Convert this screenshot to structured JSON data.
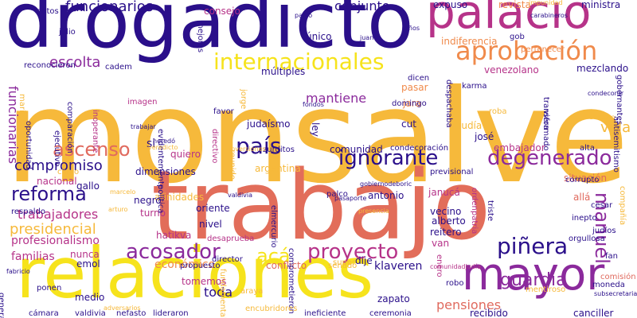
{
  "palette": {
    "indigo": "#2a0f8a",
    "purple": "#8b2a9c",
    "magenta": "#b63389",
    "coral": "#e06a5e",
    "salmon": "#e26d5a",
    "orange": "#f08a4b",
    "amber": "#f6b93b",
    "yellow": "#f6e31c",
    "pale": "#f3d27a"
  },
  "words": [
    {
      "text": "monsalve",
      "color": "#f6b93b"
    },
    {
      "text": "trabajo",
      "color": "#e26d5a"
    },
    {
      "text": "drogadicto",
      "color": "#2a0f8a"
    },
    {
      "text": "relaciones",
      "color": "#f6e31c"
    },
    {
      "text": "mayor",
      "color": "#8b2a9c"
    },
    {
      "text": "palacio",
      "color": "#b63389"
    },
    {
      "text": "aprobación",
      "color": "#f08a4b"
    },
    {
      "text": "internacionales",
      "color": "#f6e31c"
    },
    {
      "text": "país",
      "color": "#2a0f8a"
    },
    {
      "text": "ignorante",
      "color": "#2a0f8a"
    },
    {
      "text": "degenerado",
      "color": "#8b2a9c"
    },
    {
      "text": "acosador",
      "color": "#8b2a9c"
    },
    {
      "text": "acá",
      "color": "#f6e31c"
    },
    {
      "text": "proyecto",
      "color": "#b63389"
    },
    {
      "text": "piñera",
      "color": "#2a0f8a"
    },
    {
      "text": "ascenso",
      "color": "#e06a5e"
    },
    {
      "text": "reforma",
      "color": "#2a0f8a"
    },
    {
      "text": "compromiso",
      "color": "#2a0f8a"
    },
    {
      "text": "escolta",
      "color": "#8b2a9c"
    },
    {
      "text": "funcionarios",
      "color": "#2a0f8a"
    },
    {
      "text": "conjunto",
      "color": "#2a0f8a"
    },
    {
      "text": "manuel",
      "color": "#8b2a9c"
    },
    {
      "text": "guardia",
      "color": "#8b2a9c"
    },
    {
      "text": "mantiene",
      "color": "#8b2a9c"
    },
    {
      "text": "vida",
      "color": "#f6b93b"
    },
    {
      "text": "trabajadores",
      "color": "#b63389"
    },
    {
      "text": "presidencial",
      "color": "#f6b93b"
    },
    {
      "text": "profesionalismo",
      "color": "#b63389"
    },
    {
      "text": "funcionarias",
      "color": "#8b2a9c"
    },
    {
      "text": "familias",
      "color": "#b63389"
    },
    {
      "text": "pensiones",
      "color": "#e06a5e"
    },
    {
      "text": "económico",
      "color": "#f08a4b"
    },
    {
      "text": "comunidad",
      "color": "#2a0f8a"
    },
    {
      "text": "venezolano",
      "color": "#b63389"
    },
    {
      "text": "indiferencia",
      "color": "#f08a4b"
    },
    {
      "text": "mezclando",
      "color": "#2a0f8a"
    },
    {
      "text": "embajador",
      "color": "#b63389"
    },
    {
      "text": "situación",
      "color": "#e06a5e"
    },
    {
      "text": "klaveren",
      "color": "#2a0f8a"
    },
    {
      "text": "conflicto",
      "color": "#e06a5e"
    },
    {
      "text": "zapato",
      "color": "#2a0f8a"
    },
    {
      "text": "toda",
      "color": "#2a0f8a"
    },
    {
      "text": "medio",
      "color": "#2a0f8a"
    },
    {
      "text": "expuso",
      "color": "#2a0f8a"
    },
    {
      "text": "revista",
      "color": "#f08a4b"
    },
    {
      "text": "ministra",
      "color": "#2a0f8a"
    },
    {
      "text": "múltiples",
      "color": "#2a0f8a"
    },
    {
      "text": "consejo",
      "color": "#b63389"
    },
    {
      "text": "único",
      "color": "#2a0f8a"
    },
    {
      "text": "argentina",
      "color": "#f6b93b"
    },
    {
      "text": "antonio",
      "color": "#2a0f8a"
    },
    {
      "text": "alberto",
      "color": "#2a0f8a"
    },
    {
      "text": "vecino",
      "color": "#2a0f8a"
    },
    {
      "text": "reitero",
      "color": "#2a0f8a"
    },
    {
      "text": "van",
      "color": "#b63389"
    },
    {
      "text": "dije",
      "color": "#2a0f8a"
    },
    {
      "text": "janucá",
      "color": "#b63389"
    },
    {
      "text": "afinidades",
      "color": "#f6b93b"
    },
    {
      "text": "oriente",
      "color": "#2a0f8a"
    },
    {
      "text": "nivel",
      "color": "#2a0f8a"
    },
    {
      "text": "turno",
      "color": "#b63389"
    },
    {
      "text": "dimensiones",
      "color": "#2a0f8a"
    },
    {
      "text": "quiero",
      "color": "#b63389"
    },
    {
      "text": "si",
      "color": "#2a0f8a"
    },
    {
      "text": "nacional",
      "color": "#b63389"
    },
    {
      "text": "gallo",
      "color": "#2a0f8a"
    },
    {
      "text": "negro",
      "color": "#2a0f8a"
    },
    {
      "text": "hatikva",
      "color": "#b63389"
    },
    {
      "text": "nunca",
      "color": "#b63389"
    },
    {
      "text": "emol",
      "color": "#2a0f8a"
    },
    {
      "text": "tomemos",
      "color": "#b63389"
    },
    {
      "text": "cámara",
      "color": "#2a0f8a"
    },
    {
      "text": "valdivia",
      "color": "#2a0f8a"
    },
    {
      "text": "nefasto",
      "color": "#2a0f8a"
    },
    {
      "text": "lideraron",
      "color": "#2a0f8a"
    },
    {
      "text": "araya",
      "color": "#f6b93b"
    },
    {
      "text": "recibido",
      "color": "#2a0f8a"
    },
    {
      "text": "ceremonia",
      "color": "#2a0f8a"
    },
    {
      "text": "ineficiente",
      "color": "#2a0f8a"
    },
    {
      "text": "canciller",
      "color": "#2a0f8a"
    },
    {
      "text": "moneda",
      "color": "#2a0f8a"
    },
    {
      "text": "comisión",
      "color": "#e06a5e"
    },
    {
      "text": "general",
      "color": "#2a0f8a"
    },
    {
      "text": "ponen",
      "color": "#2a0f8a"
    },
    {
      "text": "propuesto",
      "color": "#2a0f8a"
    },
    {
      "text": "director",
      "color": "#2a0f8a"
    },
    {
      "text": "senado",
      "color": "#f6b93b"
    },
    {
      "text": "super",
      "color": "#f6b93b"
    },
    {
      "text": "pasar",
      "color": "#f08a4b"
    },
    {
      "text": "jara",
      "color": "#f08a4b"
    },
    {
      "text": "cut",
      "color": "#2a0f8a"
    },
    {
      "text": "judía",
      "color": "#f6b93b"
    },
    {
      "text": "judíos",
      "color": "#2a0f8a"
    },
    {
      "text": "ley",
      "color": "#2a0f8a"
    },
    {
      "text": "judaísmo",
      "color": "#2a0f8a"
    },
    {
      "text": "josé",
      "color": "#2a0f8a"
    },
    {
      "text": "condecoración",
      "color": "#2a0f8a"
    },
    {
      "text": "previsional",
      "color": "#2a0f8a"
    },
    {
      "text": "zurditos",
      "color": "#2a0f8a"
    },
    {
      "text": "palco",
      "color": "#2a0f8a"
    },
    {
      "text": "triste",
      "color": "#2a0f8a"
    },
    {
      "text": "inepto",
      "color": "#2a0f8a"
    },
    {
      "text": "cesar",
      "color": "#2a0f8a"
    },
    {
      "text": "orgullosa",
      "color": "#2a0f8a"
    },
    {
      "text": "fan",
      "color": "#2a0f8a"
    },
    {
      "text": "allá",
      "color": "#e06a5e"
    },
    {
      "text": "corrupto",
      "color": "#2a0f8a"
    },
    {
      "text": "alta",
      "color": "#2a0f8a"
    },
    {
      "text": "favor",
      "color": "#2a0f8a"
    },
    {
      "text": "directivo",
      "color": "#b63389"
    },
    {
      "text": "reunido",
      "color": "#f6b93b"
    },
    {
      "text": "política",
      "color": "#2a0f8a"
    },
    {
      "text": "evidentemente",
      "color": "#2a0f8a"
    },
    {
      "text": "ejecutivo",
      "color": "#2a0f8a"
    },
    {
      "text": "imagen",
      "color": "#b63389"
    },
    {
      "text": "cadem",
      "color": "#2a0f8a"
    },
    {
      "text": "reconocieron",
      "color": "#2a0f8a"
    },
    {
      "text": "comparación",
      "color": "#2a0f8a"
    },
    {
      "text": "inoperante",
      "color": "#b63389"
    },
    {
      "text": "dicen",
      "color": "#2a0f8a"
    },
    {
      "text": "gob",
      "color": "#2a0f8a"
    },
    {
      "text": "pertenecer",
      "color": "#f08a4b"
    },
    {
      "text": "viera",
      "color": "#2a0f8a"
    },
    {
      "text": "roba",
      "color": "#f6b93b"
    },
    {
      "text": "domingo",
      "color": "#2a0f8a"
    },
    {
      "text": "despachaba",
      "color": "#2a0f8a"
    },
    {
      "text": "karma",
      "color": "#2a0f8a"
    },
    {
      "text": "jorge",
      "color": "#f6b93b"
    },
    {
      "text": "datos",
      "color": "#2a0f8a"
    },
    {
      "text": "julio",
      "color": "#2a0f8a"
    },
    {
      "text": "chino",
      "color": "#f6b93b"
    },
    {
      "text": "respaldo",
      "color": "#2a0f8a"
    },
    {
      "text": "gobernantes",
      "color": "#2a0f8a"
    },
    {
      "text": "antisemitismo",
      "color": "#2a0f8a"
    },
    {
      "text": "compañía",
      "color": "#f6b93b"
    },
    {
      "text": "transformado",
      "color": "#2a0f8a"
    },
    {
      "text": "oportunidad",
      "color": "#2a0f8a"
    },
    {
      "text": "enero",
      "color": "#b63389"
    },
    {
      "text": "robo",
      "color": "#2a0f8a"
    },
    {
      "text": "elmercurio",
      "color": "#2a0f8a"
    },
    {
      "text": "comprometieron",
      "color": "#2a0f8a"
    },
    {
      "text": "mejores",
      "color": "#2a0f8a"
    },
    {
      "text": "desaprueba",
      "color": "#b63389"
    },
    {
      "text": "encubridores",
      "color": "#f6b93b"
    },
    {
      "text": "mentiroso",
      "color": "#f6b93b"
    },
    {
      "text": "fundamental",
      "color": "#f6b93b"
    },
    {
      "text": "ordenpatria",
      "color": "#b63389"
    },
    {
      "text": "gobiernodeboric",
      "color": "#2a0f8a"
    },
    {
      "text": "pasaporte",
      "color": "#2a0f8a"
    },
    {
      "text": "maricón",
      "color": "#f6b93b"
    },
    {
      "text": "comunidadjudía",
      "color": "#b63389"
    },
    {
      "text": "adversarios",
      "color": "#f6b93b"
    },
    {
      "text": "valdivia",
      "color": "#2a0f8a"
    },
    {
      "text": "impunidad",
      "color": "#f6b93b"
    },
    {
      "text": "carabineros",
      "color": "#2a0f8a"
    },
    {
      "text": "años",
      "color": "#2a0f8a"
    },
    {
      "text": "fondos",
      "color": "#2a0f8a"
    },
    {
      "text": "inversiones",
      "color": "#f6b93b"
    },
    {
      "text": "pablo",
      "color": "#2a0f8a"
    },
    {
      "text": "juan",
      "color": "#2a0f8a"
    },
    {
      "text": "arturo",
      "color": "#f6b93b"
    },
    {
      "text": "marcelo",
      "color": "#f6b93b"
    },
    {
      "text": "presencia",
      "color": "#f6b93b"
    },
    {
      "text": "heredó",
      "color": "#2a0f8a"
    },
    {
      "text": "trabajar",
      "color": "#2a0f8a"
    },
    {
      "text": "veredicto",
      "color": "#f6b93b"
    },
    {
      "text": "derecho",
      "color": "#f6b93b"
    },
    {
      "text": "condecorar",
      "color": "#2a0f8a"
    },
    {
      "text": "subsecretaria",
      "color": "#2a0f8a"
    },
    {
      "text": "fabricio",
      "color": "#2a0f8a"
    },
    {
      "text": "administrados",
      "color": "#2a0f8a"
    }
  ]
}
